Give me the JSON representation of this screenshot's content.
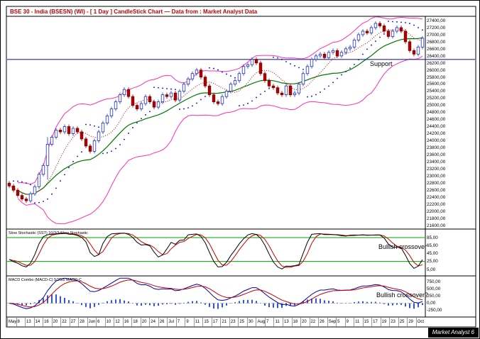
{
  "title": "BSE 30 - India (BSESN) (WI) - [ 1 Day ] CandleStick Chart — Data from : Market Analyst Data",
  "badge": "Market Analyst 6",
  "annotations": {
    "support": "Support",
    "stoch_crossover": "Bullish crossover",
    "macd_crossover": "Bullish crossover?"
  },
  "panes": {
    "price": {
      "axis": {
        "min": 21600,
        "max": 27400,
        "step": 200
      },
      "support_level": 26300
    },
    "stochastic": {
      "label": "Slow Stochastic (SST) 10/3/3 Slow Stochastic",
      "ticks": [
        85,
        65,
        45,
        25,
        5
      ],
      "upper_band": 85,
      "lower_band": 25
    },
    "macd": {
      "label": "MACD Combo (MACD-C) 5/25/5 MACD-C",
      "ticks": [
        750,
        500,
        250,
        0,
        -250
      ]
    }
  },
  "x_labels": [
    "May",
    "8",
    "13",
    "14",
    "16",
    "20",
    "22",
    "27",
    "28",
    "Jun",
    "6",
    "10",
    "12",
    "16",
    "18",
    "20",
    "24",
    "26",
    "Jul",
    "7",
    "9",
    "11",
    "15",
    "17",
    "21",
    "23",
    "25",
    "30",
    "Aug",
    "7",
    "11",
    "13",
    "18",
    "20",
    "22",
    "26",
    "Sep",
    "5",
    "9",
    "11",
    "15",
    "17",
    "19",
    "23",
    "25",
    "29",
    "Oct"
  ],
  "colors": {
    "title": "#c00000",
    "candle_up": "#ffffff",
    "candle_up_stroke": "#2030b0",
    "candle_down": "#b50000",
    "candle_down_stroke": "#7a0000",
    "bollinger": "#ff2fae",
    "ma": "#007a00",
    "psar": "#0000bb",
    "displaced_ma": "#cc0000",
    "support": "#2222bb",
    "stoch_k": "#000000",
    "stoch_d": "#cc0000",
    "stoch_band": "#00a000",
    "macd_line": "#0000aa",
    "macd_signal": "#cc0000",
    "macd_hist": "#3355cc"
  },
  "chart_data": {
    "type": "candlestick",
    "title": "BSE 30 - India (BSESN)",
    "interval": "1 Day",
    "source": "Market Analyst Data",
    "support_level": 26300,
    "price_axis": {
      "min": 21600,
      "max": 27400,
      "step": 200
    },
    "overlays": [
      {
        "name": "Bollinger Bands",
        "period": 20,
        "stdev": 2
      },
      {
        "name": "Simple Moving Average",
        "period": 20
      },
      {
        "name": "Parabolic SAR"
      },
      {
        "name": "Displaced Moving Average",
        "period": 8
      }
    ],
    "sub_charts": [
      {
        "name": "Slow Stochastic",
        "params": "10/3/3",
        "range": [
          0,
          100
        ],
        "reference_lines": [
          85,
          25
        ]
      },
      {
        "name": "MACD Combo",
        "params": "5/25/5",
        "ticks": [
          750,
          500,
          250,
          0,
          -250
        ]
      }
    ],
    "ohlc": [
      [
        22800,
        22860,
        22660,
        22720
      ],
      [
        22720,
        22780,
        22540,
        22600
      ],
      [
        22600,
        22660,
        22390,
        22450
      ],
      [
        22450,
        22510,
        22290,
        22350
      ],
      [
        22350,
        22410,
        22240,
        22300
      ],
      [
        22300,
        22560,
        22240,
        22500
      ],
      [
        22500,
        22760,
        22440,
        22700
      ],
      [
        22700,
        23110,
        22640,
        23050
      ],
      [
        23050,
        23360,
        22990,
        23300
      ],
      [
        23300,
        24100,
        22900,
        23900
      ],
      [
        23900,
        24160,
        23840,
        24100
      ],
      [
        24100,
        24360,
        24040,
        24300
      ],
      [
        24300,
        24360,
        24190,
        24250
      ],
      [
        24250,
        24460,
        24190,
        24400
      ],
      [
        24400,
        24460,
        24140,
        24200
      ],
      [
        24200,
        24410,
        24140,
        24350
      ],
      [
        24350,
        24410,
        24190,
        24250
      ],
      [
        24250,
        24310,
        23990,
        24050
      ],
      [
        24050,
        24110,
        23790,
        23850
      ],
      [
        23850,
        23910,
        23640,
        23700
      ],
      [
        23700,
        24060,
        23640,
        24000
      ],
      [
        24000,
        24310,
        23940,
        24250
      ],
      [
        24250,
        24560,
        24190,
        24500
      ],
      [
        24500,
        24760,
        24440,
        24700
      ],
      [
        24700,
        24960,
        24640,
        24900
      ],
      [
        24900,
        25160,
        24840,
        25100
      ],
      [
        25100,
        25360,
        25040,
        25300
      ],
      [
        25300,
        25510,
        25240,
        25450
      ],
      [
        25450,
        25510,
        25190,
        25250
      ],
      [
        25250,
        25310,
        24940,
        25000
      ],
      [
        25000,
        25060,
        24840,
        24900
      ],
      [
        24900,
        25110,
        24840,
        25050
      ],
      [
        25050,
        25310,
        24990,
        25250
      ],
      [
        25250,
        25310,
        25040,
        25100
      ],
      [
        25100,
        25160,
        24890,
        24950
      ],
      [
        24950,
        25160,
        24890,
        25100
      ],
      [
        25100,
        25360,
        25040,
        25300
      ],
      [
        25300,
        25360,
        25190,
        25250
      ],
      [
        25250,
        25410,
        25190,
        25350
      ],
      [
        25350,
        25410,
        25090,
        25150
      ],
      [
        25150,
        25460,
        25090,
        25400
      ],
      [
        25400,
        25660,
        25340,
        25600
      ],
      [
        25600,
        25810,
        25540,
        25750
      ],
      [
        25750,
        25960,
        25690,
        25900
      ],
      [
        25900,
        26060,
        25840,
        26000
      ],
      [
        26000,
        26060,
        25740,
        25800
      ],
      [
        25800,
        25860,
        25490,
        25550
      ],
      [
        25550,
        25610,
        25240,
        25300
      ],
      [
        25300,
        25360,
        25040,
        25100
      ],
      [
        25100,
        25160,
        24990,
        25050
      ],
      [
        25050,
        25310,
        24990,
        25250
      ],
      [
        25250,
        25460,
        25190,
        25400
      ],
      [
        25400,
        25660,
        25340,
        25600
      ],
      [
        25600,
        25760,
        25540,
        25700
      ],
      [
        25700,
        25960,
        25640,
        25900
      ],
      [
        25900,
        26160,
        25840,
        26100
      ],
      [
        26100,
        26210,
        26040,
        26150
      ],
      [
        26150,
        26360,
        26090,
        26300
      ],
      [
        26300,
        26360,
        26140,
        26200
      ],
      [
        26200,
        26260,
        25840,
        25900
      ],
      [
        25900,
        25960,
        25640,
        25700
      ],
      [
        25700,
        25760,
        25490,
        25550
      ],
      [
        25550,
        25610,
        25440,
        25500
      ],
      [
        25500,
        25560,
        25290,
        25350
      ],
      [
        25350,
        25410,
        25240,
        25300
      ],
      [
        25300,
        25610,
        25240,
        25550
      ],
      [
        25550,
        25610,
        25240,
        25300
      ],
      [
        25300,
        25410,
        25240,
        25350
      ],
      [
        25350,
        25660,
        25290,
        25600
      ],
      [
        25600,
        25960,
        25540,
        25900
      ],
      [
        25900,
        26160,
        25840,
        26100
      ],
      [
        26100,
        26360,
        26040,
        26300
      ],
      [
        26300,
        26460,
        26240,
        26400
      ],
      [
        26400,
        26510,
        26340,
        26450
      ],
      [
        26450,
        26510,
        26290,
        26350
      ],
      [
        26350,
        26560,
        26290,
        26500
      ],
      [
        26500,
        26610,
        26440,
        26550
      ],
      [
        26550,
        26610,
        26340,
        26400
      ],
      [
        26400,
        26560,
        26340,
        26500
      ],
      [
        26500,
        26660,
        26440,
        26600
      ],
      [
        26600,
        26710,
        26540,
        26650
      ],
      [
        26650,
        26910,
        26590,
        26850
      ],
      [
        26850,
        27060,
        26790,
        27000
      ],
      [
        27000,
        27160,
        26940,
        27100
      ],
      [
        27100,
        27160,
        26990,
        27050
      ],
      [
        27050,
        27260,
        26990,
        27200
      ],
      [
        27200,
        27380,
        27140,
        27320
      ],
      [
        27320,
        27380,
        27190,
        27250
      ],
      [
        27250,
        27310,
        27040,
        27100
      ],
      [
        27100,
        27160,
        26890,
        26950
      ],
      [
        26950,
        27160,
        26890,
        27100
      ],
      [
        27100,
        27260,
        27040,
        27200
      ],
      [
        27200,
        27260,
        27040,
        27100
      ],
      [
        27100,
        27160,
        26740,
        26800
      ],
      [
        26800,
        26860,
        26490,
        26550
      ],
      [
        26550,
        26610,
        26390,
        26450
      ],
      [
        26450,
        26710,
        26390,
        26650
      ],
      [
        26650,
        26960,
        26590,
        26900
      ]
    ]
  }
}
